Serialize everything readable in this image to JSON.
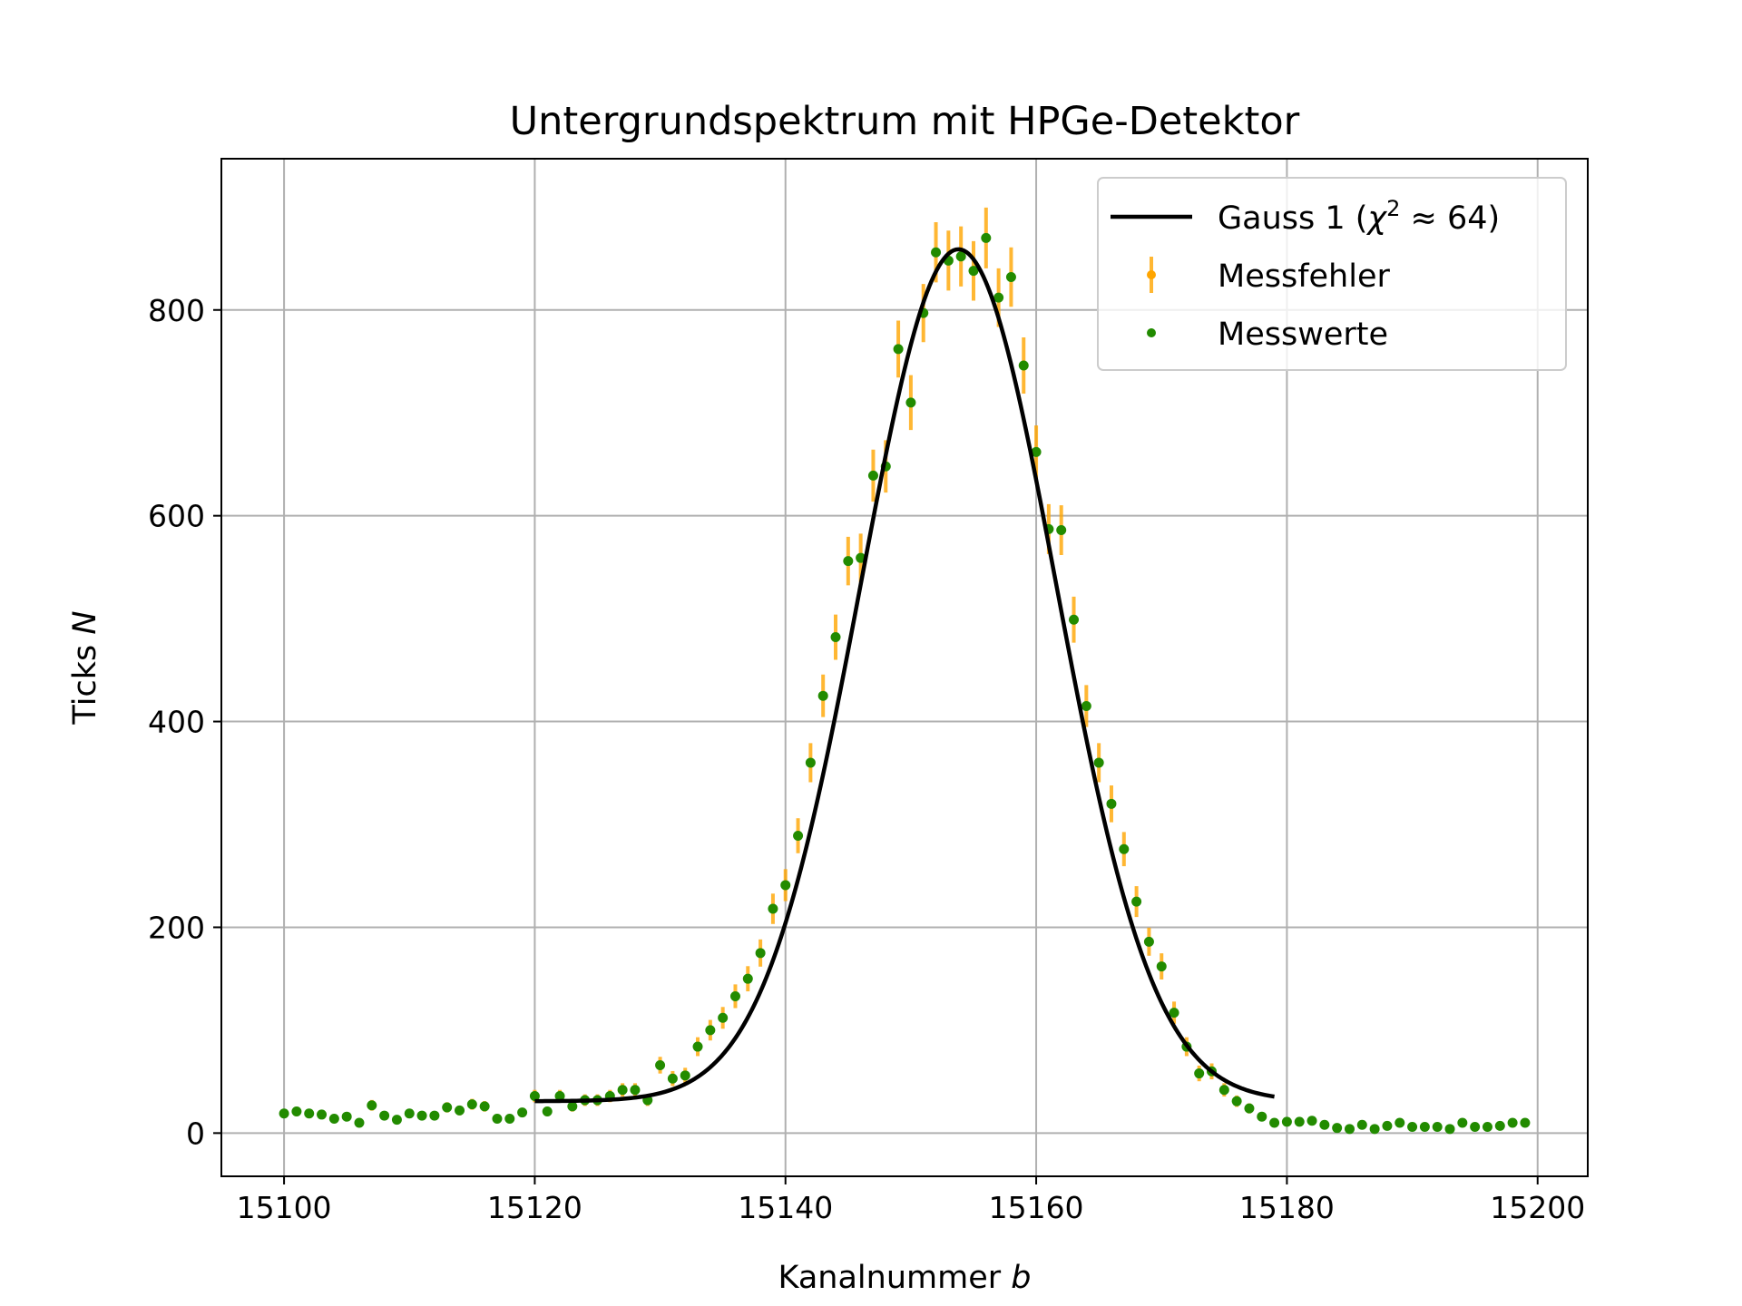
{
  "chart_data": {
    "type": "scatter",
    "title": "Untergrundspektrum mit HPGe-Detektor",
    "xlabel": "Kanalnummer",
    "xlabel_var": "b",
    "ylabel": "Ticks",
    "ylabel_var": "N",
    "xlim": [
      15095,
      15204
    ],
    "ylim": [
      -42,
      947
    ],
    "xticks": [
      15100,
      15120,
      15140,
      15160,
      15180,
      15200
    ],
    "yticks": [
      0,
      200,
      400,
      600,
      800
    ],
    "grid": true,
    "legend_position": "top-right",
    "colors": {
      "fit": "#000000",
      "errors": "#ffa500",
      "points": "#228b00",
      "grid": "#b0b0b0"
    },
    "legend": [
      {
        "label_main": "Gauss 1 (",
        "label_chi": "χ",
        "label_sup": "2",
        "label_rest": " ≈ 64)",
        "kind": "line"
      },
      {
        "label": "Messfehler",
        "kind": "errorbar"
      },
      {
        "label": "Messwerte",
        "kind": "point"
      }
    ],
    "fit": {
      "name": "Gauss 1",
      "model": "gaussian_plus_offset",
      "amplitude": 828,
      "mean": 15153.8,
      "sigma": 7.8,
      "offset": 31,
      "x_range": [
        15120,
        15179
      ]
    },
    "series": [
      {
        "name": "Messwerte",
        "x": [
          15100,
          15101,
          15102,
          15103,
          15104,
          15105,
          15106,
          15107,
          15108,
          15109,
          15110,
          15111,
          15112,
          15113,
          15114,
          15115,
          15116,
          15117,
          15118,
          15119,
          15120,
          15121,
          15122,
          15123,
          15124,
          15125,
          15126,
          15127,
          15128,
          15129,
          15130,
          15131,
          15132,
          15133,
          15134,
          15135,
          15136,
          15137,
          15138,
          15139,
          15140,
          15141,
          15142,
          15143,
          15144,
          15145,
          15146,
          15147,
          15148,
          15149,
          15150,
          15151,
          15152,
          15153,
          15154,
          15155,
          15156,
          15157,
          15158,
          15159,
          15160,
          15161,
          15162,
          15163,
          15164,
          15165,
          15166,
          15167,
          15168,
          15169,
          15170,
          15171,
          15172,
          15173,
          15174,
          15175,
          15176,
          15177,
          15178,
          15179,
          15180,
          15181,
          15182,
          15183,
          15184,
          15185,
          15186,
          15187,
          15188,
          15189,
          15190,
          15191,
          15192,
          15193,
          15194,
          15195,
          15196,
          15197,
          15198,
          15199
        ],
        "y": [
          19,
          21,
          19,
          18,
          14,
          16,
          10,
          27,
          17,
          13,
          19,
          17,
          17,
          25,
          22,
          28,
          26,
          14,
          14,
          20,
          36,
          21,
          36,
          26,
          32,
          32,
          36,
          42,
          42,
          32,
          66,
          53,
          56,
          84,
          100,
          112,
          133,
          150,
          175,
          218,
          241,
          289,
          360,
          425,
          482,
          556,
          559,
          639,
          648,
          762,
          710,
          797,
          856,
          848,
          852,
          838,
          870,
          812,
          832,
          746,
          662,
          587,
          586,
          499,
          415,
          360,
          320,
          276,
          225,
          186,
          162,
          117,
          84,
          58,
          60,
          42,
          31,
          24,
          16,
          10,
          11,
          11,
          12,
          8,
          5,
          4,
          8,
          4,
          7,
          10,
          6,
          6,
          6,
          4,
          10,
          6,
          6,
          7,
          10,
          10
        ]
      },
      {
        "name": "Messfehler",
        "x": [
          15100,
          15101,
          15102,
          15103,
          15104,
          15105,
          15106,
          15107,
          15108,
          15109,
          15110,
          15111,
          15112,
          15113,
          15114,
          15115,
          15116,
          15117,
          15118,
          15119,
          15120,
          15121,
          15122,
          15123,
          15124,
          15125,
          15126,
          15127,
          15128,
          15129,
          15130,
          15131,
          15132,
          15133,
          15134,
          15135,
          15136,
          15137,
          15138,
          15139,
          15140,
          15141,
          15142,
          15143,
          15144,
          15145,
          15146,
          15147,
          15148,
          15149,
          15150,
          15151,
          15152,
          15153,
          15154,
          15155,
          15156,
          15157,
          15158,
          15159,
          15160,
          15161,
          15162,
          15163,
          15164,
          15165,
          15166,
          15167,
          15168,
          15169,
          15170,
          15171,
          15172,
          15173,
          15174,
          15175,
          15176,
          15177,
          15178,
          15179,
          15180,
          15181,
          15182,
          15183,
          15184,
          15185,
          15186,
          15187,
          15188,
          15189,
          15190,
          15191,
          15192,
          15193,
          15194,
          15195,
          15196,
          15197,
          15198,
          15199
        ],
        "y": [
          19,
          21,
          19,
          18,
          14,
          16,
          10,
          27,
          17,
          13,
          19,
          17,
          17,
          25,
          22,
          28,
          26,
          14,
          14,
          20,
          36,
          21,
          36,
          26,
          32,
          32,
          36,
          42,
          42,
          32,
          66,
          53,
          56,
          84,
          100,
          112,
          133,
          150,
          175,
          218,
          241,
          289,
          360,
          425,
          482,
          556,
          559,
          639,
          648,
          762,
          710,
          797,
          856,
          848,
          852,
          838,
          870,
          812,
          832,
          746,
          662,
          587,
          586,
          499,
          415,
          360,
          320,
          276,
          225,
          186,
          162,
          117,
          84,
          58,
          60,
          42,
          31,
          24,
          16,
          10,
          11,
          11,
          12,
          8,
          5,
          4,
          8,
          4,
          7,
          10,
          6,
          6,
          6,
          4,
          10,
          6,
          6,
          7,
          10,
          10
        ],
        "error_model": "sqrt(N)"
      }
    ]
  }
}
